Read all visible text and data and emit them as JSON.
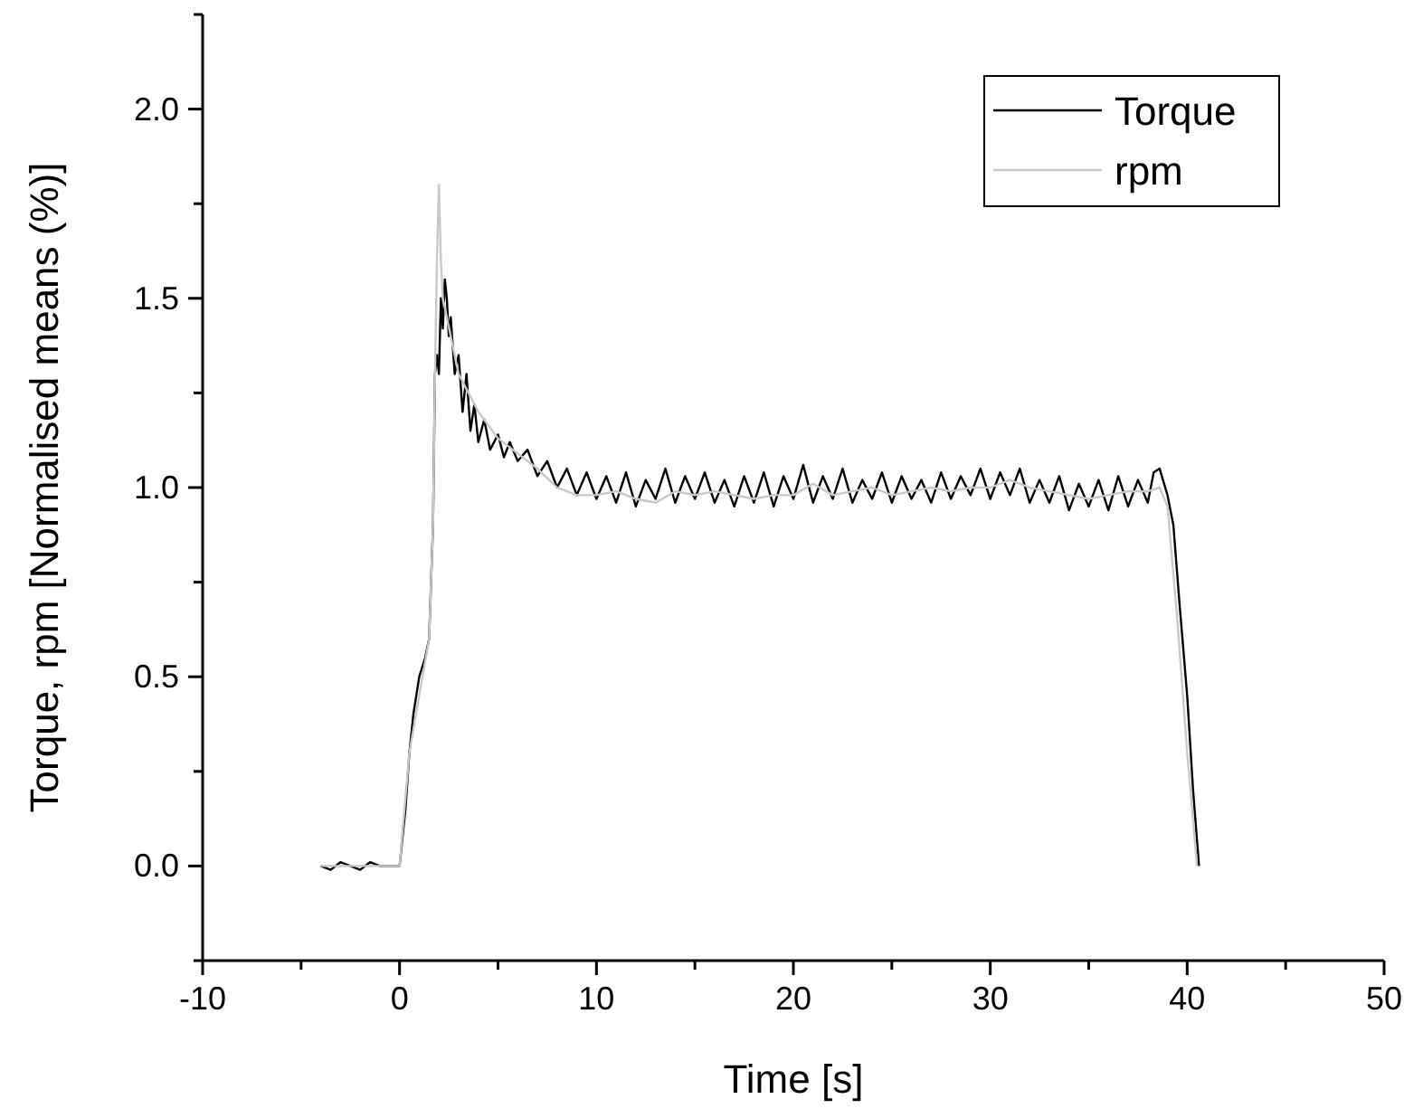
{
  "chart_data": {
    "type": "line",
    "xlabel": "Time [s]",
    "ylabel": "Torque, rpm [Normalised means (%)]",
    "xlim": [
      -10,
      50
    ],
    "ylim": [
      -0.25,
      2.25
    ],
    "xticks": [
      -10,
      {
        "value": -5,
        "label": null
      },
      0,
      {
        "value": 5,
        "label": null
      },
      10,
      {
        "value": 15,
        "label": null
      },
      20,
      {
        "value": 25,
        "label": null
      },
      30,
      {
        "value": 35,
        "label": null
      },
      40,
      {
        "value": 45,
        "label": null
      },
      50
    ],
    "yticks": [
      {
        "value": -0.25,
        "label": null
      },
      {
        "value": 0,
        "label": "0.0"
      },
      {
        "value": 0.25,
        "label": null
      },
      0.5,
      {
        "value": 0.75,
        "label": null
      },
      {
        "value": 1,
        "label": "1.0"
      },
      {
        "value": 1.25,
        "label": null
      },
      1.5,
      {
        "value": 1.75,
        "label": null
      },
      {
        "value": 2,
        "label": "2.0"
      },
      {
        "value": 2.25,
        "label": null
      }
    ],
    "grid": false,
    "legend": "top right",
    "line_style": "solid",
    "series": [
      {
        "name": "Torque",
        "color": "#000000",
        "x": [
          -4,
          -3.5,
          -3,
          -2.5,
          -2,
          -1.5,
          -1,
          -0.5,
          0,
          0.3,
          0.5,
          0.7,
          1,
          1.3,
          1.5,
          1.6,
          1.7,
          1.8,
          1.9,
          2,
          2.1,
          2.2,
          2.3,
          2.4,
          2.5,
          2.6,
          2.8,
          3,
          3.2,
          3.4,
          3.6,
          3.8,
          4,
          4.3,
          4.6,
          5,
          5.3,
          5.6,
          6,
          6.5,
          7,
          7.5,
          8,
          8.5,
          9,
          9.5,
          10,
          10.5,
          11,
          11.5,
          12,
          12.5,
          13,
          13.5,
          14,
          14.5,
          15,
          15.5,
          16,
          16.5,
          17,
          17.5,
          18,
          18.5,
          19,
          19.5,
          20,
          20.5,
          21,
          21.5,
          22,
          22.5,
          23,
          23.5,
          24,
          24.5,
          25,
          25.5,
          26,
          26.5,
          27,
          27.5,
          28,
          28.5,
          29,
          29.5,
          30,
          30.5,
          31,
          31.5,
          32,
          32.5,
          33,
          33.5,
          34,
          34.5,
          35,
          35.5,
          36,
          36.5,
          37,
          37.5,
          38,
          38.3,
          38.6,
          39,
          39.3,
          39.6,
          40,
          40.3,
          40.6
        ],
        "values": [
          0,
          -0.01,
          0.01,
          0,
          -0.01,
          0.01,
          0,
          0,
          0,
          0.15,
          0.3,
          0.4,
          0.5,
          0.55,
          0.6,
          0.75,
          0.9,
          1.3,
          1.35,
          1.3,
          1.5,
          1.42,
          1.55,
          1.5,
          1.4,
          1.45,
          1.3,
          1.35,
          1.2,
          1.3,
          1.15,
          1.22,
          1.12,
          1.18,
          1.1,
          1.14,
          1.08,
          1.12,
          1.07,
          1.1,
          1.03,
          1.07,
          1.0,
          1.05,
          0.98,
          1.04,
          0.97,
          1.03,
          0.96,
          1.04,
          0.95,
          1.02,
          0.97,
          1.05,
          0.96,
          1.03,
          0.97,
          1.04,
          0.96,
          1.02,
          0.95,
          1.03,
          0.96,
          1.04,
          0.95,
          1.03,
          0.97,
          1.06,
          0.96,
          1.03,
          0.97,
          1.05,
          0.96,
          1.02,
          0.97,
          1.04,
          0.96,
          1.03,
          0.97,
          1.02,
          0.96,
          1.04,
          0.97,
          1.03,
          0.98,
          1.05,
          0.97,
          1.04,
          0.98,
          1.05,
          0.96,
          1.02,
          0.96,
          1.03,
          0.94,
          1.01,
          0.95,
          1.02,
          0.94,
          1.03,
          0.95,
          1.02,
          0.96,
          1.04,
          1.05,
          0.98,
          0.9,
          0.7,
          0.45,
          0.2,
          0
        ]
      },
      {
        "name": "rpm",
        "color": "#c8c8c8",
        "x": [
          -4,
          -2,
          0,
          0.5,
          1,
          1.5,
          1.7,
          1.8,
          1.9,
          2,
          2.1,
          2.2,
          2.4,
          2.6,
          3,
          3.5,
          4,
          5,
          6,
          7,
          8,
          9,
          10,
          11,
          12,
          13,
          14,
          15,
          16,
          17,
          18,
          19,
          20,
          21,
          22,
          23,
          24,
          25,
          26,
          27,
          28,
          29,
          30,
          31,
          32,
          33,
          34,
          35,
          36,
          37,
          38,
          38.6,
          39,
          39.5,
          40,
          40.5
        ],
        "values": [
          0,
          0,
          0,
          0.3,
          0.45,
          0.6,
          0.9,
          1.3,
          1.6,
          1.8,
          1.6,
          1.5,
          1.45,
          1.4,
          1.3,
          1.25,
          1.2,
          1.13,
          1.09,
          1.05,
          1.0,
          0.98,
          0.98,
          0.99,
          0.97,
          0.96,
          0.99,
          0.98,
          0.99,
          0.98,
          0.97,
          0.98,
          0.98,
          1.01,
          0.98,
          0.99,
          1.0,
          0.98,
          0.99,
          1.0,
          0.99,
          1.0,
          1.0,
          1.02,
          1.0,
          0.99,
          0.98,
          0.97,
          0.98,
          0.99,
          0.99,
          1.0,
          0.95,
          0.65,
          0.3,
          0
        ]
      }
    ]
  }
}
